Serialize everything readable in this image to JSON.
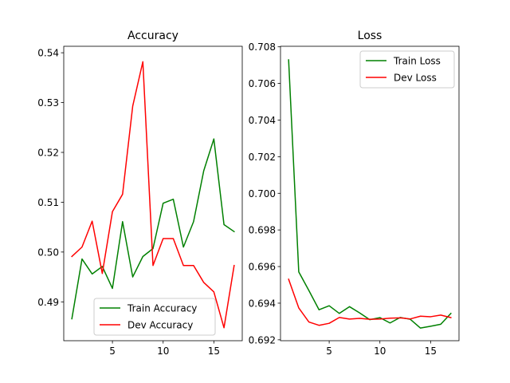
{
  "chart_data": [
    {
      "type": "line",
      "title": "Accuracy",
      "xlabel": "",
      "ylabel": "",
      "x": [
        1,
        2,
        3,
        4,
        5,
        6,
        7,
        8,
        9,
        10,
        11,
        12,
        13,
        14,
        15,
        16,
        17
      ],
      "xlim": [
        0.2,
        17.8
      ],
      "ylim": [
        0.4822,
        0.5413
      ],
      "xticks": [
        5,
        10,
        15
      ],
      "yticks": [
        0.49,
        0.5,
        0.51,
        0.52,
        0.53,
        0.54
      ],
      "ytick_labels": [
        "0.49",
        "0.50",
        "0.51",
        "0.52",
        "0.53",
        "0.54"
      ],
      "legend_position": "lower-center",
      "series": [
        {
          "name": "Train Accuracy",
          "color": "#008000",
          "values": [
            0.4866,
            0.4986,
            0.4956,
            0.4971,
            0.4927,
            0.5061,
            0.495,
            0.4991,
            0.5007,
            0.5098,
            0.5106,
            0.501,
            0.5061,
            0.5163,
            0.5227,
            0.5055,
            0.5041
          ]
        },
        {
          "name": "Dev Accuracy",
          "color": "#ff0000",
          "values": [
            0.4991,
            0.501,
            0.5062,
            0.4957,
            0.5081,
            0.5116,
            0.5293,
            0.5382,
            0.4973,
            0.5027,
            0.5027,
            0.4973,
            0.4973,
            0.4939,
            0.492,
            0.4848,
            0.4973
          ]
        }
      ]
    },
    {
      "type": "line",
      "title": "Loss",
      "xlabel": "",
      "ylabel": "",
      "x": [
        1,
        2,
        3,
        4,
        5,
        6,
        7,
        8,
        9,
        10,
        11,
        12,
        13,
        14,
        15,
        16,
        17
      ],
      "xlim": [
        0.2,
        17.8
      ],
      "ylim": [
        0.69195,
        0.70803
      ],
      "xticks": [
        5,
        10,
        15
      ],
      "yticks": [
        0.692,
        0.694,
        0.696,
        0.698,
        0.7,
        0.702,
        0.704,
        0.706,
        0.708
      ],
      "ytick_labels": [
        "0.692",
        "0.694",
        "0.696",
        "0.698",
        "0.700",
        "0.702",
        "0.704",
        "0.706",
        "0.708"
      ],
      "legend_position": "upper-right",
      "series": [
        {
          "name": "Train Loss",
          "color": "#008000",
          "values": [
            0.70729,
            0.69571,
            0.69469,
            0.69364,
            0.69386,
            0.69344,
            0.69381,
            0.69347,
            0.6931,
            0.69321,
            0.69292,
            0.69322,
            0.69312,
            0.69264,
            0.69274,
            0.69285,
            0.69344
          ]
        },
        {
          "name": "Dev Loss",
          "color": "#ff0000",
          "values": [
            0.69531,
            0.69374,
            0.69297,
            0.69279,
            0.6929,
            0.69322,
            0.69313,
            0.69317,
            0.69312,
            0.69313,
            0.69318,
            0.6932,
            0.69314,
            0.69329,
            0.69326,
            0.69335,
            0.69321
          ]
        }
      ]
    }
  ]
}
